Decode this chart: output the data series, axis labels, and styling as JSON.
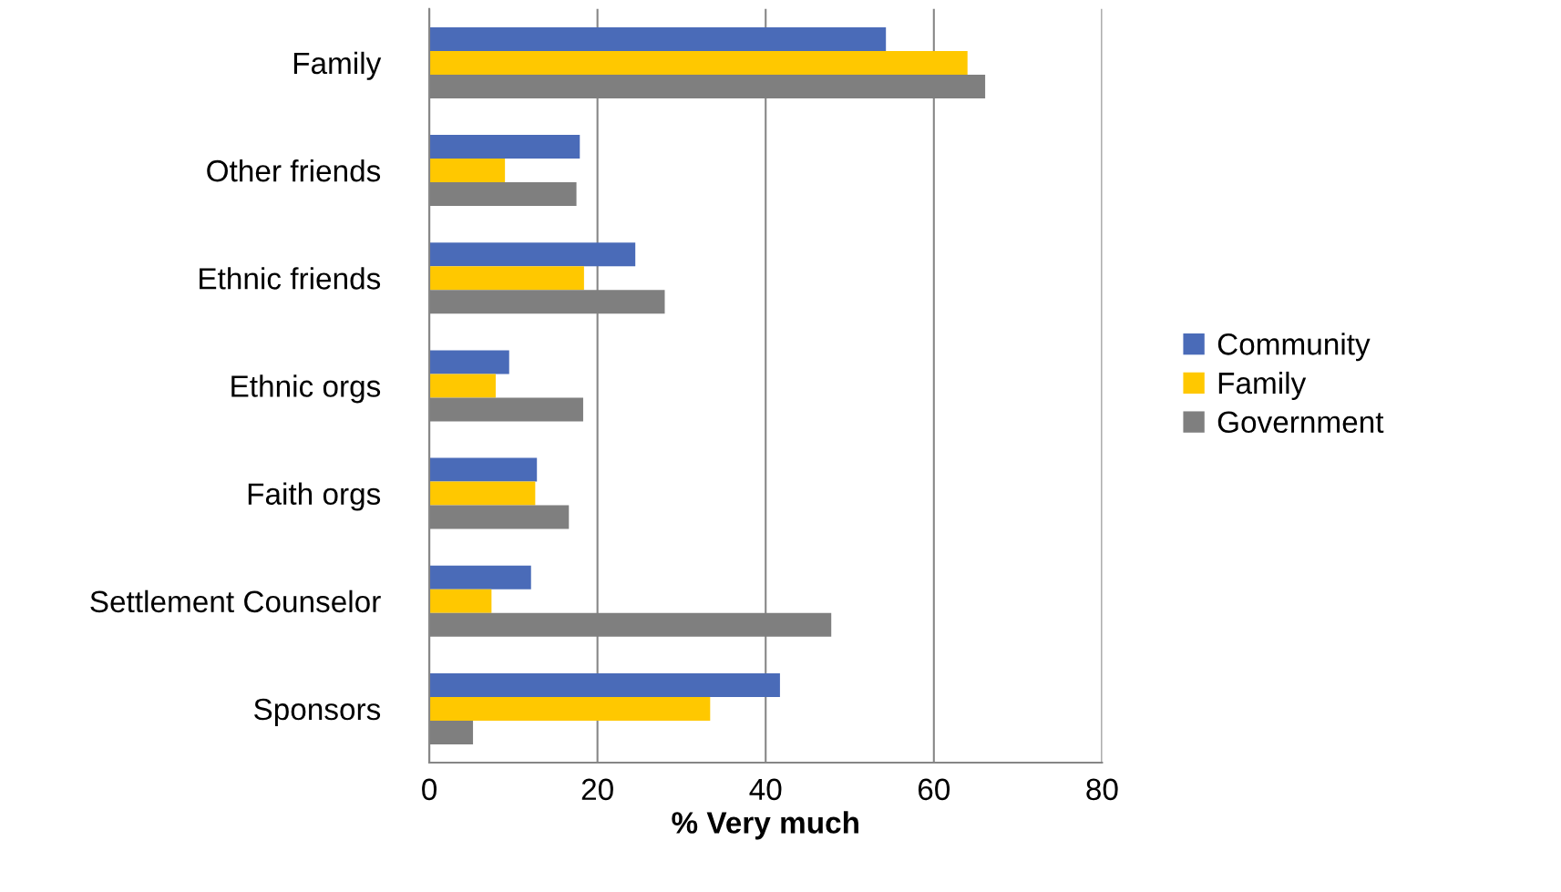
{
  "chart_data": {
    "type": "bar",
    "orientation": "horizontal",
    "xlabel": "% Very much",
    "categories": [
      "Family",
      "Other friends",
      "Ethnic friends",
      "Ethnic orgs",
      "Faith orgs",
      "Settlement Counselor",
      "Sponsors"
    ],
    "series": [
      {
        "name": "Community",
        "color": "#4a6bb8",
        "values": [
          54.3,
          17.9,
          24.5,
          9.5,
          12.8,
          12.1,
          41.7
        ]
      },
      {
        "name": "Family",
        "color": "#ffc800",
        "values": [
          64.0,
          9.0,
          18.4,
          7.9,
          12.6,
          7.4,
          33.4
        ]
      },
      {
        "name": "Government",
        "color": "#7f7f7f",
        "values": [
          66.1,
          17.5,
          28.0,
          18.3,
          16.6,
          47.8,
          5.2
        ]
      }
    ],
    "xlim": [
      0,
      80
    ],
    "xticks": [
      0,
      20,
      40,
      60,
      80
    ],
    "grid": "x",
    "legend": "right"
  }
}
